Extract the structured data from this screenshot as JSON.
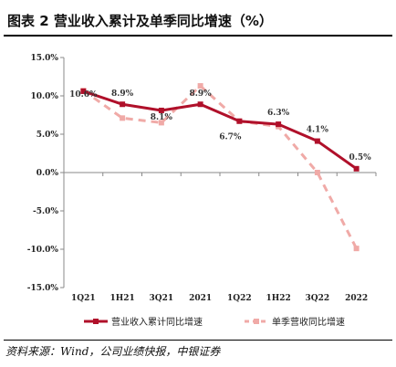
{
  "page_title": "图表 2  营业收入累计及单季同比增速（%）",
  "source_note": "资料来源：Wind，公司业绩快报，中银证券",
  "chart_data": {
    "type": "line",
    "categories": [
      "1Q21",
      "1H21",
      "3Q21",
      "2021",
      "1Q22",
      "1H22",
      "3Q22",
      "2022"
    ],
    "ylim": [
      -15,
      15
    ],
    "yticks": [
      -15,
      -10,
      -5,
      0,
      5,
      10,
      15
    ],
    "ytick_labels": [
      "-15.0%",
      "-10.0%",
      "-5.0%",
      "0.0%",
      "5.0%",
      "10.0%",
      "15.0%"
    ],
    "legend_position": "bottom",
    "grid": false,
    "series": [
      {
        "name": "营业收入累计同比增速",
        "color": "#b0102a",
        "style": "solid",
        "values": [
          10.6,
          8.9,
          8.1,
          8.9,
          6.7,
          6.3,
          4.1,
          0.5
        ],
        "data_labels": [
          "10.6%",
          "8.9%",
          "8.1%",
          "8.9%",
          "6.7%",
          "6.3%",
          "4.1%",
          "0.5%"
        ]
      },
      {
        "name": "单季营收同比增速",
        "color": "#f0aaa7",
        "style": "dashed",
        "values": [
          10.7,
          7.1,
          6.5,
          11.3,
          6.7,
          6.0,
          0.0,
          -9.9
        ],
        "data_labels": []
      }
    ]
  }
}
